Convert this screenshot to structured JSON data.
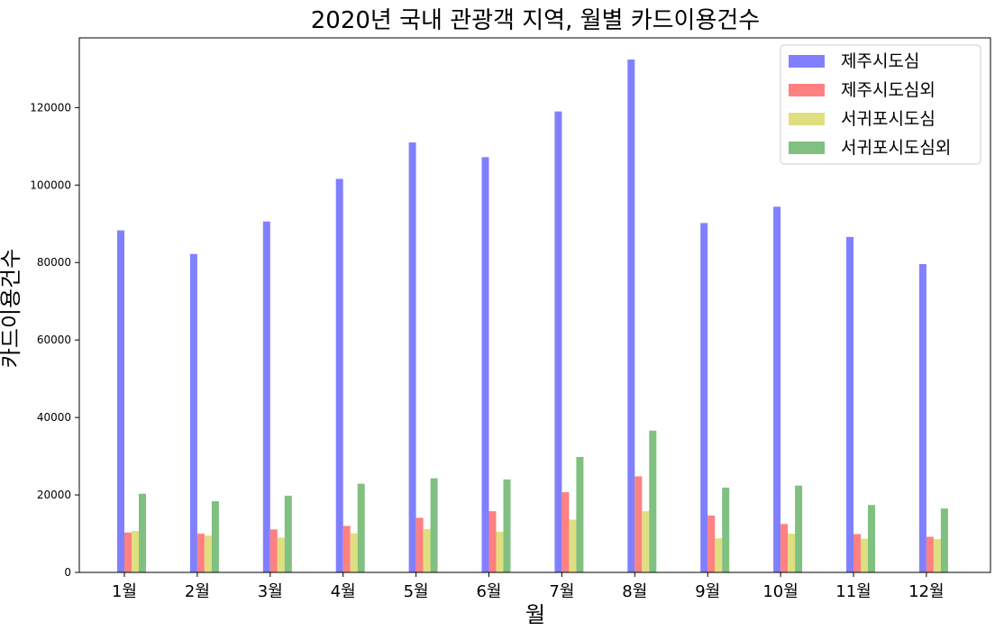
{
  "chart_data": {
    "type": "bar",
    "title": "2020년 국내 관광객 지역, 월별 카드이용건수",
    "xlabel": "월",
    "ylabel": "카드이용건수",
    "categories": [
      "1월",
      "2월",
      "3월",
      "4월",
      "5월",
      "6월",
      "7월",
      "8월",
      "9월",
      "10월",
      "11월",
      "12월"
    ],
    "ylim": [
      0,
      138000
    ],
    "yticks": [
      0,
      20000,
      40000,
      60000,
      80000,
      100000,
      120000
    ],
    "grid": false,
    "legend_position": "top-right",
    "series": [
      {
        "name": "제주시도심",
        "color": "#8080ff",
        "values": [
          88300,
          82200,
          90600,
          101600,
          111000,
          107200,
          119000,
          132400,
          90200,
          94400,
          86600,
          79600
        ]
      },
      {
        "name": "제주시도심외",
        "color": "#ff8080",
        "values": [
          10300,
          10000,
          11100,
          12000,
          14100,
          15800,
          20700,
          24800,
          14700,
          12500,
          9900,
          9200
        ]
      },
      {
        "name": "서귀포시도심",
        "color": "#dfdf80",
        "values": [
          10700,
          9500,
          9000,
          10100,
          11200,
          10500,
          13600,
          15800,
          8800,
          10000,
          8700,
          8600
        ]
      },
      {
        "name": "서귀포시도심외",
        "color": "#80c080",
        "values": [
          20300,
          18400,
          19800,
          22900,
          24300,
          24000,
          29800,
          36600,
          21900,
          22400,
          17400,
          16500
        ]
      }
    ]
  }
}
